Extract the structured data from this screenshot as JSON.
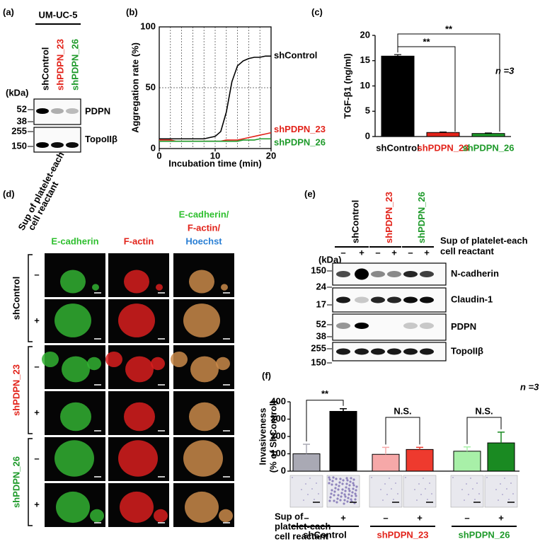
{
  "panel_labels": [
    "(a)",
    "(b)",
    "(c)",
    "(d)",
    "(e)",
    "(f)"
  ],
  "panel_a": {
    "cell_line": "UM-UC-5",
    "lanes": [
      "shControl",
      "shPDPN_23",
      "shPDPN_26"
    ],
    "lane_colors": [
      "#000000",
      "#e2231a",
      "#1e9a2a"
    ],
    "unit": "(kDa)",
    "blots": [
      {
        "name": "PDPN",
        "markers": [
          52,
          38
        ]
      },
      {
        "name": "TopoIIβ",
        "markers": [
          255,
          150
        ]
      }
    ]
  },
  "chart_data": [
    {
      "type": "line",
      "xlabel": "Incubation time (min)",
      "ylabel": "Aggregation rate (%)",
      "x": [
        0,
        1,
        2,
        3,
        4,
        5,
        6,
        7,
        8,
        9,
        10,
        11,
        12,
        13,
        14,
        15,
        16,
        17,
        18,
        19,
        20
      ],
      "series": [
        {
          "name": "shControl",
          "color": "#000000",
          "values": [
            8,
            8,
            8,
            8,
            8,
            8,
            8,
            8,
            8,
            9,
            10,
            14,
            30,
            55,
            68,
            72,
            74,
            75,
            75,
            76,
            76
          ]
        },
        {
          "name": "shPDPN_23",
          "color": "#e2231a",
          "values": [
            7,
            7,
            7,
            6,
            6,
            6,
            6,
            6,
            6,
            6,
            6,
            6,
            7,
            7,
            7,
            8,
            9,
            10,
            11,
            12,
            13
          ]
        },
        {
          "name": "shPDPN_26",
          "color": "#1e9a2a",
          "values": [
            6,
            6,
            6,
            6,
            6,
            6,
            6,
            6,
            6,
            6,
            6,
            6,
            6,
            6,
            6,
            7,
            7,
            7,
            8,
            8,
            8
          ]
        }
      ],
      "xlim": [
        0,
        20
      ],
      "xticks": [
        0,
        10,
        20
      ],
      "ylim": [
        0,
        100
      ],
      "yticks": [
        0,
        50,
        100
      ],
      "grid": true
    },
    {
      "type": "bar",
      "ylabel": "TGF-β1 (ng/ml)",
      "categories": [
        "shControl",
        "shPDPN_23",
        "shPDPN_26"
      ],
      "values": [
        15.9,
        0.8,
        0.6
      ],
      "errors": [
        0.3,
        0.1,
        0.1
      ],
      "colors": [
        "#000000",
        "#e2231a",
        "#1e9a2a"
      ],
      "ylim": [
        0,
        20
      ],
      "yticks": [
        0,
        5,
        10,
        15,
        20
      ],
      "annotations": [
        "**",
        "**"
      ],
      "n_label": "n =3"
    },
    {
      "type": "bar",
      "ylabel": [
        "Invasiveness",
        "(% of ShControl)"
      ],
      "categories": [
        null,
        null,
        null,
        null,
        null,
        null
      ],
      "values": [
        100,
        345,
        97,
        125,
        115,
        163
      ],
      "errors": [
        55,
        15,
        40,
        12,
        25,
        62
      ],
      "colors": [
        "#a9a9b4",
        "#000000",
        "#f6a8a8",
        "#ee3a2e",
        "#a8f0a8",
        "#1a8a22"
      ],
      "ylim": [
        0,
        400
      ],
      "yticks": [
        0,
        100,
        200,
        300,
        400
      ],
      "annotations": [
        "**",
        "N.S.",
        "N.S."
      ],
      "n_label": "n =3",
      "condition": [
        "Sup of",
        "platelet-each",
        "cell reactant"
      ],
      "signs": [
        "–",
        "+",
        "–",
        "+",
        "–",
        "+"
      ],
      "groups": [
        "shControl",
        "shPDPN_23",
        "shPDPN_26"
      ],
      "group_colors": [
        "#000000",
        "#e2231a",
        "#1e9a2a"
      ]
    }
  ],
  "panel_d": {
    "condition": [
      "Sup of platelet-each",
      "cell reactant"
    ],
    "columns": [
      "E-cadherin",
      "F-actin"
    ],
    "column_colors": [
      "#2fbf2f",
      "#e2231a"
    ],
    "merge": [
      "E-cadherin/",
      "F-actin/",
      "Hoechst"
    ],
    "merge_colors": [
      "#2fbf2f",
      "#e2231a",
      "#2a7fd4"
    ],
    "groups": [
      "shControl",
      "shPDPN_23",
      "shPDPN_26"
    ],
    "group_colors": [
      "#000000",
      "#e2231a",
      "#1e9a2a"
    ],
    "signs": [
      "–",
      "+"
    ]
  },
  "panel_e": {
    "lanes": [
      "shControl",
      "shPDPN_23",
      "shPDPN_26"
    ],
    "lane_colors": [
      "#000000",
      "#e2231a",
      "#1e9a2a"
    ],
    "signs": [
      "–",
      "+",
      "–",
      "+",
      "–",
      "+"
    ],
    "condition": [
      "Sup of platelet-each",
      "cell reactant"
    ],
    "unit": "(kDa)",
    "blots": [
      {
        "name": "N-cadherin",
        "markers": [
          150
        ]
      },
      {
        "name": "Claudin-1",
        "markers": [
          24,
          17
        ]
      },
      {
        "name": "PDPN",
        "markers": [
          52,
          38
        ]
      },
      {
        "name": "TopoIIβ",
        "markers": [
          255,
          150
        ]
      }
    ]
  }
}
